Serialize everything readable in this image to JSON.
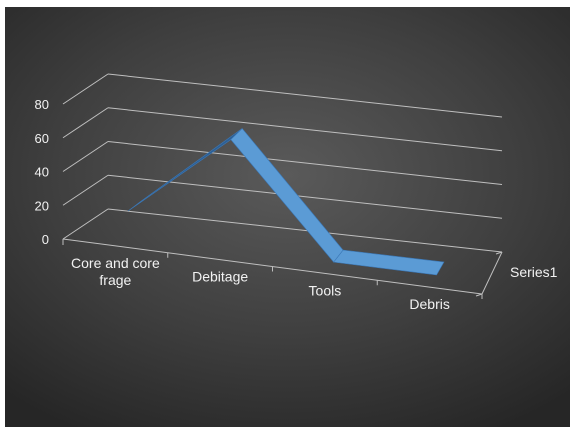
{
  "chart_data": {
    "type": "line",
    "title": "",
    "xlabel": "",
    "ylabel": "",
    "categories": [
      "Core and core frage",
      "Debitage",
      "Tools",
      "Debris"
    ],
    "category_lines": [
      [
        "Core and core",
        "frage"
      ],
      [
        "Debitage"
      ],
      [
        "Tools"
      ],
      [
        "Debris"
      ]
    ],
    "series": [
      {
        "name": "Series1",
        "values": [
          15,
          65,
          0,
          0
        ]
      }
    ],
    "ylim": [
      0,
      80
    ],
    "yticks": [
      "0",
      "20",
      "40",
      "60",
      "80"
    ],
    "grid": true,
    "legend": "none",
    "style": "3d-ribbon",
    "colors": {
      "series": "#5b9bd5",
      "series_dark": "#2e5f93",
      "gridline": "#bfbfbf",
      "text": "#f2f2f2"
    }
  }
}
